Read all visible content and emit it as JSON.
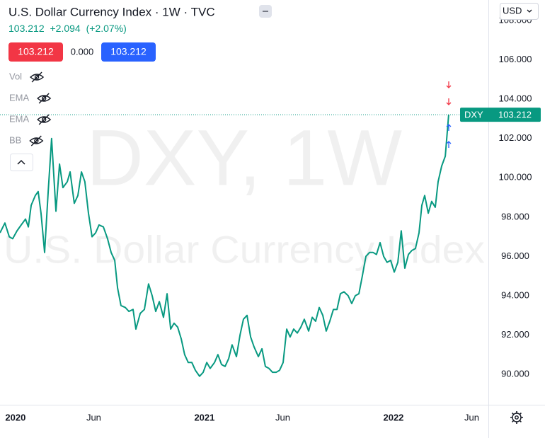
{
  "chart_data": {
    "type": "line",
    "title": "U.S. Dollar Currency Index · 1W · TVC",
    "x": [
      2019.918,
      2019.944,
      2019.967,
      2019.985,
      2020.008,
      2020.03,
      2020.053,
      2020.068,
      2020.083,
      2020.105,
      2020.12,
      2020.135,
      2020.154,
      2020.173,
      2020.191,
      2020.214,
      2020.233,
      2020.251,
      2020.274,
      2020.289,
      2020.311,
      2020.33,
      2020.349,
      2020.367,
      2020.386,
      2020.405,
      2020.424,
      2020.442,
      2020.465,
      2020.487,
      2020.506,
      2020.525,
      2020.54,
      2020.558,
      2020.581,
      2020.6,
      2020.622,
      2020.637,
      2020.66,
      2020.682,
      2020.704,
      2020.723,
      2020.742,
      2020.761,
      2020.783,
      2020.802,
      2020.821,
      2020.839,
      2020.858,
      2020.877,
      2020.895,
      2020.914,
      2020.933,
      2020.952,
      2020.974,
      2020.993,
      2021.012,
      2021.03,
      2021.053,
      2021.071,
      2021.09,
      2021.109,
      2021.128,
      2021.146,
      2021.169,
      2021.188,
      2021.206,
      2021.225,
      2021.244,
      2021.262,
      2021.285,
      2021.304,
      2021.322,
      2021.341,
      2021.36,
      2021.379,
      2021.397,
      2021.416,
      2021.435,
      2021.453,
      2021.472,
      2021.491,
      2021.51,
      2021.528,
      2021.551,
      2021.57,
      2021.588,
      2021.607,
      2021.626,
      2021.644,
      2021.663,
      2021.682,
      2021.701,
      2021.719,
      2021.738,
      2021.76,
      2021.779,
      2021.798,
      2021.817,
      2021.835,
      2021.854,
      2021.873,
      2021.892,
      2021.91,
      2021.929,
      2021.948,
      2021.966,
      2021.985,
      2022.004,
      2022.023,
      2022.041,
      2022.06,
      2022.079,
      2022.097,
      2022.116,
      2022.135,
      2022.15,
      2022.165,
      2022.184,
      2022.202,
      2022.221,
      2022.236,
      2022.255,
      2022.274,
      2022.292
    ],
    "series": [
      {
        "name": "DXY",
        "color": "#089981",
        "values": [
          97.2,
          97.7,
          97.0,
          96.9,
          97.3,
          97.6,
          97.9,
          97.5,
          98.6,
          99.1,
          99.3,
          98.2,
          96.2,
          99.3,
          102.0,
          98.3,
          100.7,
          99.5,
          99.8,
          100.3,
          98.7,
          99.1,
          100.3,
          99.8,
          98.2,
          97.0,
          97.2,
          97.6,
          97.5,
          96.9,
          96.2,
          95.8,
          94.4,
          93.5,
          93.4,
          93.2,
          93.3,
          92.3,
          93.1,
          93.3,
          94.6,
          94.0,
          93.2,
          93.7,
          92.9,
          94.1,
          92.3,
          92.6,
          92.4,
          91.8,
          91.0,
          90.6,
          90.6,
          90.2,
          89.9,
          90.1,
          90.6,
          90.3,
          90.6,
          91.0,
          90.5,
          90.4,
          90.8,
          91.5,
          90.9,
          92.0,
          92.8,
          93.0,
          91.9,
          91.4,
          90.9,
          91.3,
          90.4,
          90.3,
          90.1,
          90.1,
          90.2,
          90.6,
          92.3,
          91.9,
          92.3,
          92.1,
          92.4,
          92.8,
          92.2,
          92.9,
          92.7,
          93.4,
          93.0,
          92.2,
          92.7,
          93.3,
          93.3,
          94.1,
          94.2,
          94.0,
          93.6,
          94.0,
          94.1,
          95.0,
          96.0,
          96.2,
          96.2,
          96.1,
          96.7,
          96.0,
          95.7,
          95.8,
          95.2,
          95.7,
          97.3,
          95.4,
          96.1,
          96.3,
          96.4,
          97.2,
          98.6,
          99.1,
          98.2,
          98.8,
          98.5,
          99.8,
          100.6,
          101.1,
          103.212
        ]
      }
    ],
    "xlim": [
      2019.918,
      2022.502
    ],
    "xticks": [
      {
        "value": 2020,
        "label": "2020"
      },
      {
        "value": 2020.414,
        "label": "Jun"
      },
      {
        "value": 2021,
        "label": "2021"
      },
      {
        "value": 2021.414,
        "label": "Jun"
      },
      {
        "value": 2022,
        "label": "2022"
      },
      {
        "value": 2022.414,
        "label": "Jun"
      }
    ],
    "ylim": [
      88.45,
      109.05
    ],
    "yticks": [
      {
        "value": 90,
        "label": "90.000"
      },
      {
        "value": 92,
        "label": "92.000"
      },
      {
        "value": 94,
        "label": "94.000"
      },
      {
        "value": 96,
        "label": "96.000"
      },
      {
        "value": 98,
        "label": "98.000"
      },
      {
        "value": 100,
        "label": "100.000"
      },
      {
        "value": 102,
        "label": "102.000"
      },
      {
        "value": 104,
        "label": "104.000"
      },
      {
        "value": 106,
        "label": "106.000"
      },
      {
        "value": 108,
        "label": "108.000"
      }
    ],
    "grid": false
  },
  "header": {
    "quote": {
      "last": "103.212",
      "change": "+2.094",
      "change_pct": "(+2.07%)"
    },
    "bid": "103.212",
    "spread": "0.000",
    "ask": "103.212",
    "indicators": [
      "Vol",
      "EMA",
      "EMA",
      "BB"
    ]
  },
  "watermark": {
    "symbol": "DXY, 1W",
    "name": "U.S. Dollar Currency Index"
  },
  "currency": "USD"
}
